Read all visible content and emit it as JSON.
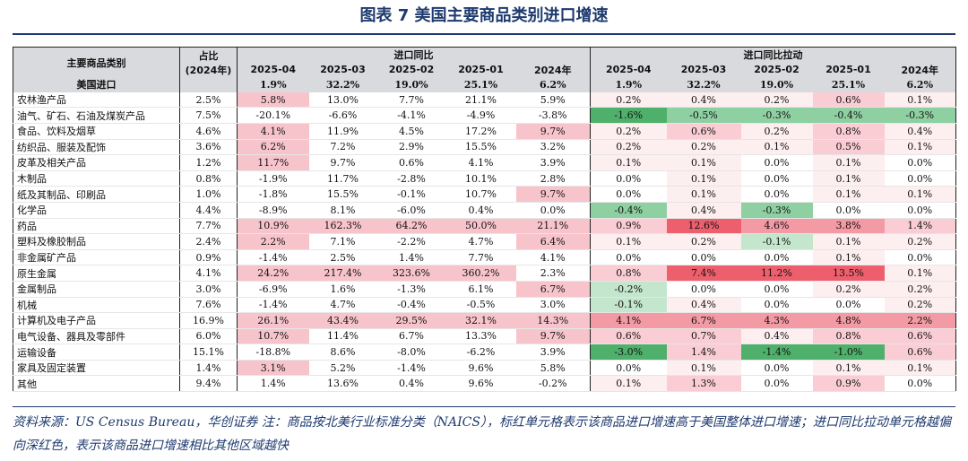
{
  "title": "图表 7   美国主要商品类别进口增速",
  "source_note": "资料来源：US Census Bureau，华创证券   注：商品按北美行业标准分类（NAICS），标红单元格表示该商品进口增速高于美国整体进口增速；进口同比拉动单元格越偏向深红色，表示该商品进口增速相比其他区域越快",
  "headers": {
    "category": "主要商品类别",
    "share": "占比",
    "share_year": "(2024年)",
    "group_yoy": "进口同比",
    "group_contrib": "进口同比拉动",
    "periods": [
      "2025-04",
      "2025-03",
      "2025-02",
      "2025-01",
      "2024年"
    ]
  },
  "colors": {
    "header_bg": "#d9dade",
    "above_total_red": "#f8c4cc",
    "contrib_red_scale": [
      "#fdeef0",
      "#f9cdd3",
      "#f49aa5",
      "#ee5f6e"
    ],
    "contrib_green_scale": [
      "#e6f4ea",
      "#c3e6cd",
      "#8fd0a2",
      "#4fb06b"
    ],
    "title_blue": "#1e3a6e"
  },
  "chart_data": {
    "type": "table",
    "title": "美国主要商品类别进口增速",
    "columns": [
      "主要商品类别",
      "占比(2024年)",
      "进口同比 2025-04",
      "进口同比 2025-03",
      "进口同比 2025-02",
      "进口同比 2025-01",
      "进口同比 2024年",
      "进口同比拉动 2025-04",
      "进口同比拉动 2025-03",
      "进口同比拉动 2025-02",
      "进口同比拉动 2025-01",
      "进口同比拉动 2024年"
    ],
    "total": {
      "name": "美国进口",
      "share": "",
      "yoy": [
        "1.9%",
        "32.2%",
        "19.0%",
        "25.1%",
        "6.2%"
      ],
      "contrib": [
        "1.9%",
        "32.2%",
        "19.0%",
        "25.1%",
        "6.2%"
      ]
    },
    "rows": [
      {
        "name": "农林渔产品",
        "share": "2.5%",
        "yoy": [
          "5.8%",
          "13.0%",
          "7.7%",
          "21.1%",
          "5.9%"
        ],
        "contrib": [
          "0.2%",
          "0.4%",
          "0.2%",
          "0.6%",
          "0.1%"
        ]
      },
      {
        "name": "油气、矿石、石油及煤炭产品",
        "share": "7.5%",
        "yoy": [
          "-20.1%",
          "-6.6%",
          "-4.1%",
          "-4.9%",
          "-3.8%"
        ],
        "contrib": [
          "-1.6%",
          "-0.5%",
          "-0.3%",
          "-0.4%",
          "-0.3%"
        ]
      },
      {
        "name": "食品、饮料及烟草",
        "share": "4.6%",
        "yoy": [
          "4.1%",
          "11.9%",
          "4.5%",
          "17.2%",
          "9.7%"
        ],
        "contrib": [
          "0.2%",
          "0.6%",
          "0.2%",
          "0.8%",
          "0.4%"
        ]
      },
      {
        "name": "纺织品、服装及配饰",
        "share": "3.6%",
        "yoy": [
          "6.2%",
          "7.2%",
          "2.9%",
          "15.5%",
          "3.2%"
        ],
        "contrib": [
          "0.2%",
          "0.2%",
          "0.1%",
          "0.5%",
          "0.1%"
        ]
      },
      {
        "name": "皮革及相关产品",
        "share": "1.2%",
        "yoy": [
          "11.7%",
          "9.7%",
          "0.6%",
          "4.1%",
          "3.9%"
        ],
        "contrib": [
          "0.1%",
          "0.1%",
          "0.0%",
          "0.1%",
          "0.0%"
        ]
      },
      {
        "name": "木制品",
        "share": "0.8%",
        "yoy": [
          "-1.9%",
          "11.7%",
          "-2.8%",
          "10.1%",
          "2.8%"
        ],
        "contrib": [
          "0.0%",
          "0.1%",
          "0.0%",
          "0.1%",
          "0.0%"
        ]
      },
      {
        "name": "纸及其制品、印刷品",
        "share": "1.0%",
        "yoy": [
          "-1.8%",
          "15.5%",
          "-0.1%",
          "10.7%",
          "9.7%"
        ],
        "contrib": [
          "0.0%",
          "0.1%",
          "0.0%",
          "0.1%",
          "0.1%"
        ]
      },
      {
        "name": "化学品",
        "share": "4.4%",
        "yoy": [
          "-8.9%",
          "8.1%",
          "-6.0%",
          "0.4%",
          "0.0%"
        ],
        "contrib": [
          "-0.4%",
          "0.4%",
          "-0.3%",
          "0.0%",
          "0.0%"
        ]
      },
      {
        "name": "药品",
        "share": "7.7%",
        "yoy": [
          "10.9%",
          "162.3%",
          "64.2%",
          "50.0%",
          "21.1%"
        ],
        "contrib": [
          "0.9%",
          "12.6%",
          "4.6%",
          "3.8%",
          "1.4%"
        ]
      },
      {
        "name": "塑料及橡胶制品",
        "share": "2.4%",
        "yoy": [
          "2.2%",
          "7.1%",
          "-2.2%",
          "4.7%",
          "6.4%"
        ],
        "contrib": [
          "0.1%",
          "0.2%",
          "-0.1%",
          "0.1%",
          "0.2%"
        ]
      },
      {
        "name": "非金属矿产品",
        "share": "0.9%",
        "yoy": [
          "-1.4%",
          "2.5%",
          "1.4%",
          "7.7%",
          "4.1%"
        ],
        "contrib": [
          "0.0%",
          "0.0%",
          "0.0%",
          "0.1%",
          "0.0%"
        ]
      },
      {
        "name": "原生金属",
        "share": "4.1%",
        "yoy": [
          "24.2%",
          "217.4%",
          "323.6%",
          "360.2%",
          "2.3%"
        ],
        "contrib": [
          "0.8%",
          "7.4%",
          "11.2%",
          "13.5%",
          "0.1%"
        ]
      },
      {
        "name": "金属制品",
        "share": "3.0%",
        "yoy": [
          "-6.9%",
          "1.6%",
          "-1.3%",
          "6.1%",
          "6.7%"
        ],
        "contrib": [
          "-0.2%",
          "0.0%",
          "0.0%",
          "0.2%",
          "0.2%"
        ]
      },
      {
        "name": "机械",
        "share": "7.6%",
        "yoy": [
          "-1.4%",
          "4.7%",
          "-0.4%",
          "-0.5%",
          "3.0%"
        ],
        "contrib": [
          "-0.1%",
          "0.4%",
          "0.0%",
          "0.0%",
          "0.2%"
        ]
      },
      {
        "name": "计算机及电子产品",
        "share": "16.9%",
        "yoy": [
          "26.1%",
          "43.4%",
          "29.5%",
          "32.1%",
          "14.3%"
        ],
        "contrib": [
          "4.1%",
          "6.7%",
          "4.3%",
          "4.8%",
          "2.2%"
        ]
      },
      {
        "name": "电气设备、器具及零部件",
        "share": "6.0%",
        "yoy": [
          "10.7%",
          "11.4%",
          "6.7%",
          "13.3%",
          "9.7%"
        ],
        "contrib": [
          "0.6%",
          "0.7%",
          "0.4%",
          "0.8%",
          "0.6%"
        ]
      },
      {
        "name": "运输设备",
        "share": "15.1%",
        "yoy": [
          "-18.8%",
          "8.6%",
          "-8.0%",
          "-6.2%",
          "3.9%"
        ],
        "contrib": [
          "-3.0%",
          "1.4%",
          "-1.4%",
          "-1.0%",
          "0.6%"
        ]
      },
      {
        "name": "家具及固定装置",
        "share": "1.4%",
        "yoy": [
          "3.1%",
          "5.2%",
          "-1.4%",
          "9.6%",
          "5.8%"
        ],
        "contrib": [
          "0.0%",
          "0.1%",
          "0.0%",
          "0.1%",
          "0.1%"
        ]
      },
      {
        "name": "其他",
        "share": "9.4%",
        "yoy": [
          "1.4%",
          "13.6%",
          "0.4%",
          "9.6%",
          "-0.2%"
        ],
        "contrib": [
          "0.1%",
          "1.3%",
          "0.0%",
          "0.9%",
          "0.0%"
        ]
      }
    ]
  }
}
